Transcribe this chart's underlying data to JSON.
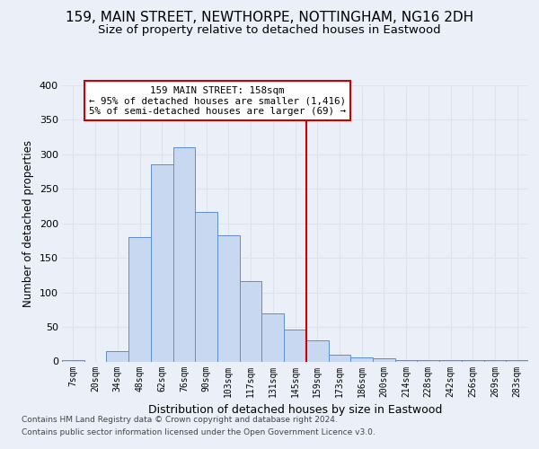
{
  "title1": "159, MAIN STREET, NEWTHORPE, NOTTINGHAM, NG16 2DH",
  "title2": "Size of property relative to detached houses in Eastwood",
  "xlabel": "Distribution of detached houses by size in Eastwood",
  "ylabel": "Number of detached properties",
  "footnote1": "Contains HM Land Registry data © Crown copyright and database right 2024.",
  "footnote2": "Contains public sector information licensed under the Open Government Licence v3.0.",
  "categories": [
    "7sqm",
    "20sqm",
    "34sqm",
    "48sqm",
    "62sqm",
    "76sqm",
    "90sqm",
    "103sqm",
    "117sqm",
    "131sqm",
    "145sqm",
    "159sqm",
    "173sqm",
    "186sqm",
    "200sqm",
    "214sqm",
    "228sqm",
    "242sqm",
    "256sqm",
    "269sqm",
    "283sqm"
  ],
  "values": [
    2,
    0,
    15,
    180,
    285,
    310,
    217,
    183,
    117,
    70,
    46,
    30,
    10,
    6,
    5,
    2,
    2,
    2,
    2,
    2,
    2
  ],
  "bar_color": "#c8d8f0",
  "bar_edge_color": "#5b8fd4",
  "vline_color": "#cc0000",
  "vline_index": 11,
  "annotation_title": "159 MAIN STREET: 158sqm",
  "annotation_line1": "← 95% of detached houses are smaller (1,416)",
  "annotation_line2": "5% of semi-detached houses are larger (69) →",
  "annotation_box_edgecolor": "#cc0000",
  "ylim": [
    0,
    400
  ],
  "yticks": [
    0,
    50,
    100,
    150,
    200,
    250,
    300,
    350,
    400
  ],
  "bg_color": "#eaeff8",
  "grid_color": "#dde4f0",
  "title_fontsize": 11,
  "subtitle_fontsize": 9.5,
  "footnote_fontsize": 6.5
}
